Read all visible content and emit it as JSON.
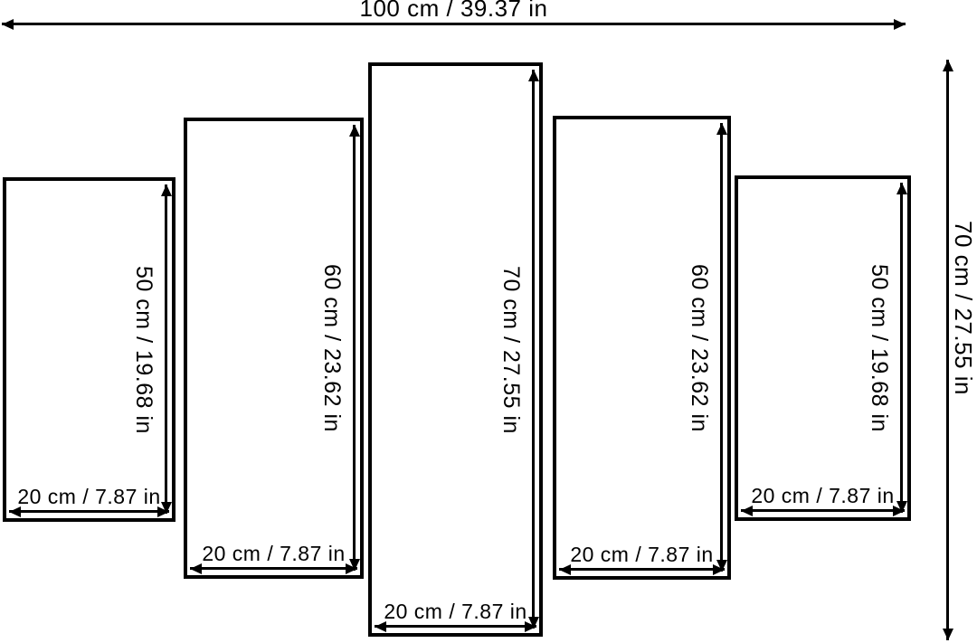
{
  "diagram": {
    "type": "5-panel wall-art size diagram",
    "overall": {
      "width_label": "100 cm / 39.37 in",
      "height_label": "70 cm / 27.55 in",
      "width_cm": 100,
      "width_in": 39.37,
      "height_cm": 70,
      "height_in": 27.55
    },
    "panels": [
      {
        "height_label": "50 cm / 19.68 in",
        "width_label": "20 cm / 7.87 in",
        "height_cm": 50,
        "height_in": 19.68,
        "width_cm": 20,
        "width_in": 7.87
      },
      {
        "height_label": "60 cm / 23.62 in",
        "width_label": "20 cm / 7.87 in",
        "height_cm": 60,
        "height_in": 23.62,
        "width_cm": 20,
        "width_in": 7.87
      },
      {
        "height_label": "70 cm / 27.55 in",
        "width_label": "20 cm / 7.87 in",
        "height_cm": 70,
        "height_in": 27.55,
        "width_cm": 20,
        "width_in": 7.87
      },
      {
        "height_label": "60 cm / 23.62 in",
        "width_label": "20 cm / 7.87 in",
        "height_cm": 60,
        "height_in": 23.62,
        "width_cm": 20,
        "width_in": 7.87
      },
      {
        "height_label": "50 cm / 19.68 in",
        "width_label": "20 cm / 7.87 in",
        "height_cm": 50,
        "height_in": 19.68,
        "width_cm": 20,
        "width_in": 7.87
      }
    ],
    "colors": {
      "line": "#000000",
      "background": "#ffffff"
    }
  }
}
